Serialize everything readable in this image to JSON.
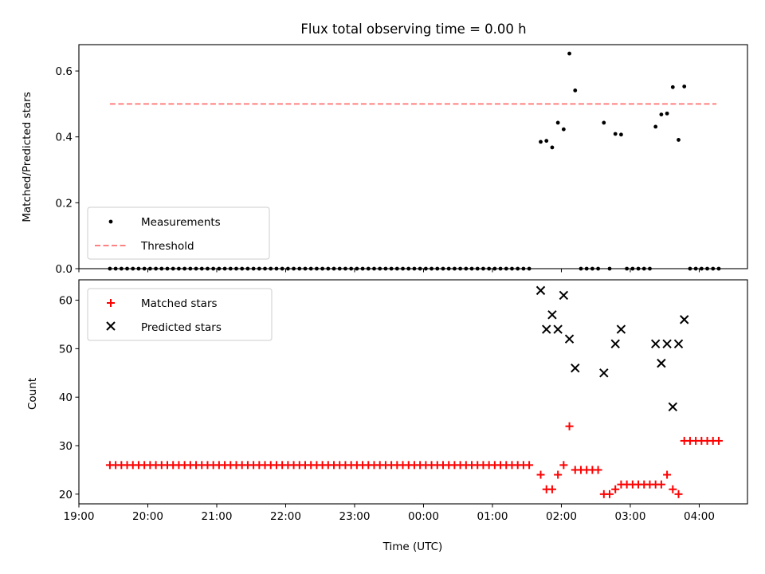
{
  "title": "Flux total observing time = 0.00 h",
  "top_ylabel": "Matched/Predicted stars",
  "bottom_ylabel": "Count",
  "xlabel": "Time (UTC)",
  "legend_top": {
    "measurements": "Measurements",
    "threshold": "Threshold"
  },
  "legend_bottom": {
    "matched": "Matched stars",
    "predicted": "Predicted stars"
  },
  "colors": {
    "measurement": "#000000",
    "threshold": "#ff7070",
    "matched": "#ff0000",
    "predicted": "#000000"
  },
  "chart_data": [
    {
      "type": "scatter",
      "panel": "top",
      "ylabel": "Matched/Predicted stars",
      "xlim": [
        "19:00",
        "04:42"
      ],
      "ylim": [
        0,
        0.68
      ],
      "yticks": [
        "0.0",
        "0.2",
        "0.4",
        "0.6"
      ],
      "xticks": [
        "19:00",
        "20:00",
        "21:00",
        "22:00",
        "23:00",
        "00:00",
        "01:00",
        "02:00",
        "03:00",
        "04:00"
      ],
      "legend": "lower left",
      "threshold": {
        "name": "Threshold",
        "value": 0.5,
        "x_start": "19:27",
        "x_end": "04:15"
      },
      "series": [
        {
          "name": "Measurements",
          "zero_run": {
            "from": "19:27",
            "to": "01:36",
            "step_min": 5,
            "value": 0
          },
          "points": [
            [
              "01:42",
              0.385
            ],
            [
              "01:47",
              0.388
            ],
            [
              "01:52",
              0.368
            ],
            [
              "01:57",
              0.443
            ],
            [
              "02:02",
              0.423
            ],
            [
              "02:07",
              0.653
            ],
            [
              "02:12",
              0.541
            ],
            [
              "02:17",
              0
            ],
            [
              "02:22",
              0
            ],
            [
              "02:27",
              0
            ],
            [
              "02:32",
              0
            ],
            [
              "02:37",
              0.443
            ],
            [
              "02:42",
              0
            ],
            [
              "02:47",
              0.409
            ],
            [
              "02:52",
              0.407
            ],
            [
              "02:57",
              0
            ],
            [
              "03:02",
              0
            ],
            [
              "03:07",
              0
            ],
            [
              "03:12",
              0
            ],
            [
              "03:17",
              0
            ],
            [
              "03:22",
              0.431
            ],
            [
              "03:27",
              0.468
            ],
            [
              "03:32",
              0.471
            ],
            [
              "03:37",
              0.551
            ],
            [
              "03:42",
              0.391
            ],
            [
              "03:47",
              0.553
            ],
            [
              "03:52",
              0
            ],
            [
              "03:57",
              0
            ],
            [
              "04:02",
              0
            ],
            [
              "04:07",
              0
            ],
            [
              "04:12",
              0
            ],
            [
              "04:17",
              0
            ]
          ]
        }
      ]
    },
    {
      "type": "scatter",
      "panel": "bottom",
      "ylabel": "Count",
      "xlabel": "Time (UTC)",
      "xlim": [
        "19:00",
        "04:42"
      ],
      "ylim": [
        18,
        64.2
      ],
      "yticks": [
        "20",
        "30",
        "40",
        "50",
        "60"
      ],
      "xticks": [
        "19:00",
        "20:00",
        "21:00",
        "22:00",
        "23:00",
        "00:00",
        "01:00",
        "02:00",
        "03:00",
        "04:00"
      ],
      "legend": "upper left",
      "series": [
        {
          "name": "Matched stars",
          "marker": "plus",
          "run": {
            "from": "19:27",
            "to": "01:36",
            "step_min": 5,
            "value": 26
          },
          "points": [
            [
              "01:42",
              24
            ],
            [
              "01:47",
              21
            ],
            [
              "01:52",
              21
            ],
            [
              "01:57",
              24
            ],
            [
              "02:02",
              26
            ],
            [
              "02:07",
              34
            ],
            [
              "02:12",
              25
            ],
            [
              "02:17",
              25
            ],
            [
              "02:22",
              25
            ],
            [
              "02:27",
              25
            ],
            [
              "02:32",
              25
            ],
            [
              "02:37",
              20
            ],
            [
              "02:42",
              20
            ],
            [
              "02:47",
              21
            ],
            [
              "02:52",
              22
            ],
            [
              "02:57",
              22
            ],
            [
              "03:02",
              22
            ],
            [
              "03:07",
              22
            ],
            [
              "03:12",
              22
            ],
            [
              "03:17",
              22
            ],
            [
              "03:22",
              22
            ],
            [
              "03:27",
              22
            ],
            [
              "03:32",
              24
            ],
            [
              "03:37",
              21
            ],
            [
              "03:42",
              20
            ],
            [
              "03:47",
              31
            ],
            [
              "03:52",
              31
            ],
            [
              "03:57",
              31
            ],
            [
              "04:02",
              31
            ],
            [
              "04:07",
              31
            ],
            [
              "04:12",
              31
            ],
            [
              "04:17",
              31
            ]
          ]
        },
        {
          "name": "Predicted stars",
          "marker": "x",
          "points": [
            [
              "01:42",
              62
            ],
            [
              "01:47",
              54
            ],
            [
              "01:52",
              57
            ],
            [
              "01:57",
              54
            ],
            [
              "02:02",
              61
            ],
            [
              "02:07",
              52
            ],
            [
              "02:12",
              46
            ],
            [
              "02:37",
              45
            ],
            [
              "02:47",
              51
            ],
            [
              "02:52",
              54
            ],
            [
              "03:22",
              51
            ],
            [
              "03:27",
              47
            ],
            [
              "03:32",
              51
            ],
            [
              "03:37",
              38
            ],
            [
              "03:42",
              51
            ],
            [
              "03:47",
              56
            ]
          ]
        }
      ]
    }
  ]
}
